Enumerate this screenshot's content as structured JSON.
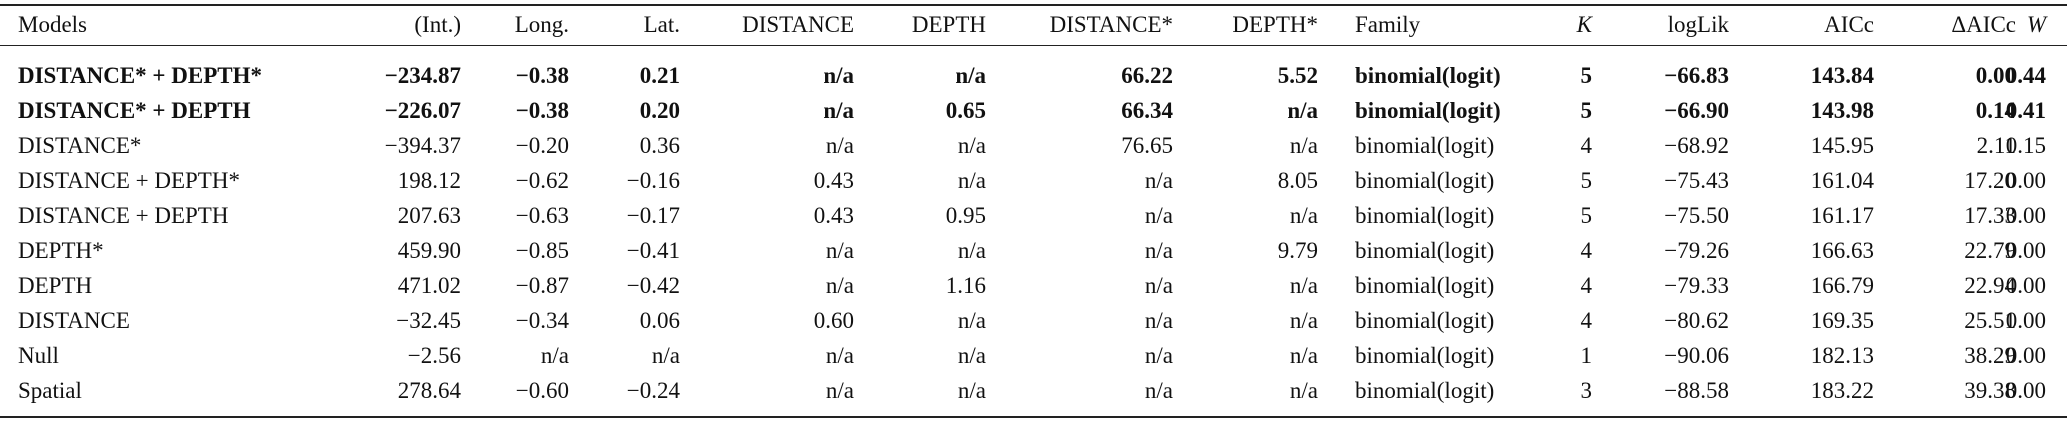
{
  "table": {
    "header": [
      "Models",
      "(Int.)",
      "Long.",
      "Lat.",
      "DISTANCE",
      "DEPTH",
      "DISTANCE*",
      "DEPTH*",
      "Family",
      "K",
      "logLik",
      "AICc",
      "ΔAICc",
      "W"
    ],
    "rows": [
      [
        "DISTANCE* + DEPTH*",
        "−234.87",
        "−0.38",
        "0.21",
        "n/a",
        "n/a",
        "66.22",
        "5.52",
        "binomial(logit)",
        "5",
        "−66.83",
        "143.84",
        "0.00",
        "0.44"
      ],
      [
        "DISTANCE* + DEPTH",
        "−226.07",
        "−0.38",
        "0.20",
        "n/a",
        "0.65",
        "66.34",
        "n/a",
        "binomial(logit)",
        "5",
        "−66.90",
        "143.98",
        "0.14",
        "0.41"
      ],
      [
        "DISTANCE*",
        "−394.37",
        "−0.20",
        "0.36",
        "n/a",
        "n/a",
        "76.65",
        "n/a",
        "binomial(logit)",
        "4",
        "−68.92",
        "145.95",
        "2.11",
        "0.15"
      ],
      [
        "DISTANCE + DEPTH*",
        "198.12",
        "−0.62",
        "−0.16",
        "0.43",
        "n/a",
        "n/a",
        "8.05",
        "binomial(logit)",
        "5",
        "−75.43",
        "161.04",
        "17.20",
        "0.00"
      ],
      [
        "DISTANCE + DEPTH",
        "207.63",
        "−0.63",
        "−0.17",
        "0.43",
        "0.95",
        "n/a",
        "n/a",
        "binomial(logit)",
        "5",
        "−75.50",
        "161.17",
        "17.33",
        "0.00"
      ],
      [
        "DEPTH*",
        "459.90",
        "−0.85",
        "−0.41",
        "n/a",
        "n/a",
        "n/a",
        "9.79",
        "binomial(logit)",
        "4",
        "−79.26",
        "166.63",
        "22.79",
        "0.00"
      ],
      [
        "DEPTH",
        "471.02",
        "−0.87",
        "−0.42",
        "n/a",
        "1.16",
        "n/a",
        "n/a",
        "binomial(logit)",
        "4",
        "−79.33",
        "166.79",
        "22.94",
        "0.00"
      ],
      [
        "DISTANCE",
        "−32.45",
        "−0.34",
        "0.06",
        "0.60",
        "n/a",
        "n/a",
        "n/a",
        "binomial(logit)",
        "4",
        "−80.62",
        "169.35",
        "25.51",
        "0.00"
      ],
      [
        "Null",
        "−2.56",
        "n/a",
        "n/a",
        "n/a",
        "n/a",
        "n/a",
        "n/a",
        "binomial(logit)",
        "1",
        "−90.06",
        "182.13",
        "38.29",
        "0.00"
      ],
      [
        "Spatial",
        "278.64",
        "−0.60",
        "−0.24",
        "n/a",
        "n/a",
        "n/a",
        "n/a",
        "binomial(logit)",
        "3",
        "−88.58",
        "183.22",
        "39.38",
        "0.00"
      ]
    ]
  }
}
